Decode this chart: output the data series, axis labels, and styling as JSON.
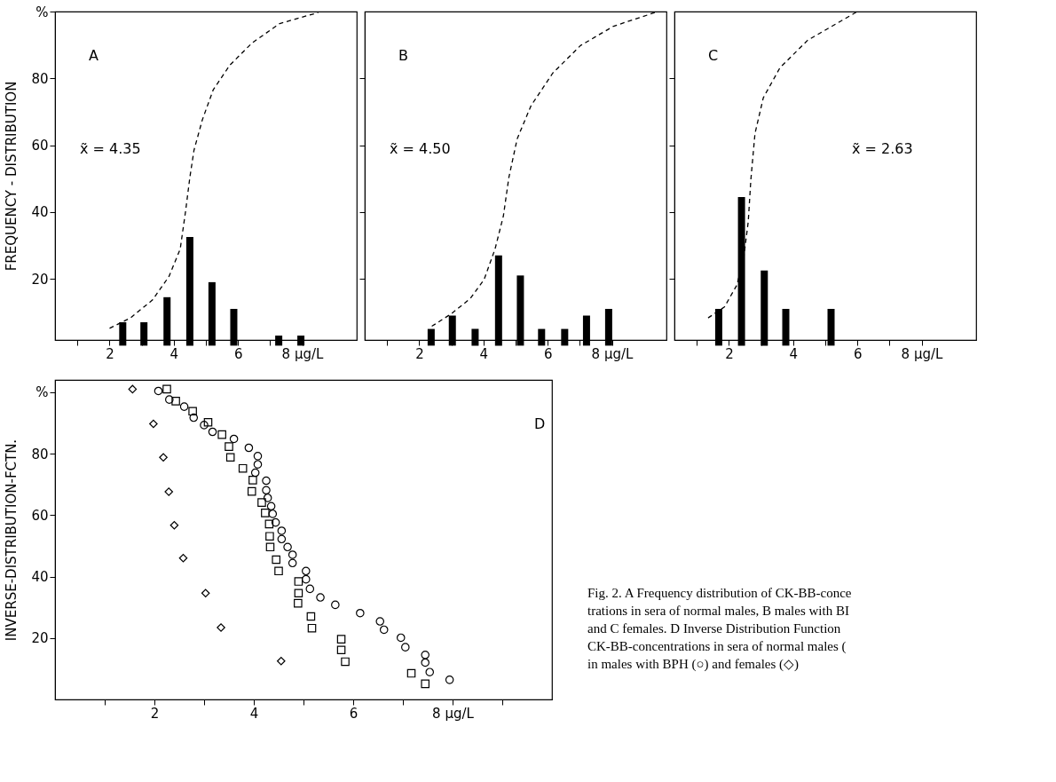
{
  "chart_data": [
    {
      "type": "bar",
      "ylabel": "FREQUENCY - DISTRIBUTION",
      "annotations": [
        "A",
        "x̃ = 4.35"
      ],
      "xlim": [
        0.3,
        9.7
      ],
      "xticks": [
        {
          "value": 1,
          "label": null
        },
        2,
        {
          "value": 3,
          "label": null
        },
        4,
        {
          "value": 5,
          "label": null
        },
        6,
        {
          "value": 7,
          "label": null
        },
        {
          "value": 8,
          "label": "8 µg/L"
        }
      ],
      "ylim": [
        1.7,
        100
      ],
      "yticks": [
        20,
        40,
        60,
        80,
        {
          "value": 100,
          "label": "%"
        }
      ],
      "grid": false,
      "series": [
        {
          "color": "#000000",
          "x": [
            2.41,
            3.07,
            3.79,
            4.5,
            5.19,
            5.87,
            7.27,
            7.96
          ],
          "values": [
            7,
            7,
            14.5,
            32.5,
            19,
            11,
            3,
            3
          ]
        },
        {
          "type": "line",
          "line_style": "dashed",
          "color": "#000000",
          "x": [
            2.0,
            2.65,
            3.34,
            3.85,
            4.2,
            4.37,
            4.5,
            4.63,
            4.89,
            5.23,
            5.75,
            6.44,
            7.3,
            8.5
          ],
          "values": [
            5.2,
            8.3,
            13.7,
            20.7,
            28.9,
            40.4,
            50.3,
            58.5,
            67.6,
            76.6,
            84,
            90.6,
            96.4,
            99.7
          ]
        }
      ]
    },
    {
      "type": "bar",
      "annotations": [
        "B",
        "x̃ = 4.50"
      ],
      "tick_labels": "x",
      "xlim": [
        0.3,
        9.7
      ],
      "xticks": [
        {
          "value": 1,
          "label": null
        },
        2,
        {
          "value": 3,
          "label": null
        },
        4,
        {
          "value": 5,
          "label": null
        },
        6,
        {
          "value": 7,
          "label": null
        },
        {
          "value": 8,
          "label": "8 µg/L"
        }
      ],
      "ylim": [
        1.7,
        100
      ],
      "yticks": [
        20,
        40,
        60,
        80
      ],
      "grid": false,
      "series": [
        {
          "color": "#000000",
          "x": [
            2.37,
            3.03,
            3.74,
            4.47,
            5.15,
            5.81,
            6.53,
            7.21,
            7.9
          ],
          "values": [
            5,
            9,
            5,
            27,
            21,
            5,
            5,
            9,
            11
          ]
        },
        {
          "type": "line",
          "line_style": "dashed",
          "color": "#000000",
          "x": [
            2.39,
            2.99,
            3.59,
            4.02,
            4.36,
            4.62,
            4.79,
            5.05,
            5.48,
            6.16,
            7.02,
            8.05,
            9.34
          ],
          "values": [
            5.8,
            9.5,
            14.1,
            19.8,
            28.9,
            38.8,
            50.3,
            61.9,
            71.8,
            81.6,
            89.8,
            95.6,
            99.7
          ]
        }
      ]
    },
    {
      "type": "bar",
      "annotations": [
        "C",
        "x̃ = 2.63"
      ],
      "tick_labels": "x",
      "xlim": [
        0.3,
        9.7
      ],
      "xticks": [
        {
          "value": 1,
          "label": null
        },
        2,
        {
          "value": 3,
          "label": null
        },
        4,
        {
          "value": 5,
          "label": null
        },
        6,
        {
          "value": 7,
          "label": null
        },
        {
          "value": 8,
          "label": "8 µg/L"
        }
      ],
      "ylim": [
        1.7,
        100
      ],
      "yticks": [
        20,
        40,
        60,
        80
      ],
      "grid": false,
      "series": [
        {
          "color": "#000000",
          "x": [
            1.68,
            2.39,
            3.1,
            3.77,
            5.18
          ],
          "values": [
            11,
            44.5,
            22.5,
            11,
            11
          ]
        },
        {
          "type": "line",
          "line_style": "dashed",
          "color": "#000000",
          "x": [
            1.35,
            1.86,
            2.25,
            2.47,
            2.6,
            2.68,
            2.81,
            3.07,
            3.59,
            4.45,
            6.0
          ],
          "values": [
            8.3,
            11.6,
            18.2,
            27.2,
            37.1,
            49.5,
            63.5,
            74.2,
            83.2,
            91.4,
            100
          ]
        }
      ]
    },
    {
      "type": "scatter",
      "ylabel": "INVERSE-DISTRIBUTION-FCTN.",
      "annotations": [
        "D",
        "Fig. 2. A Frequency distribution of CK-BB-conce",
        "trations in sera of normal males, B males with BI",
        "and C females. D Inverse Distribution Function",
        "CK-BB-concentrations in sera of normal males (",
        "in males with BPH (○) and females (◇)"
      ],
      "xlim": [
        0,
        10
      ],
      "xticks": [
        {
          "value": 1,
          "label": null
        },
        2,
        {
          "value": 3,
          "label": null
        },
        4,
        {
          "value": 5,
          "label": null
        },
        6,
        {
          "value": 7,
          "label": null
        },
        {
          "value": 8,
          "label": "8  µg/L"
        },
        {
          "value": 9,
          "label": null
        }
      ],
      "ylim": [
        0,
        104
      ],
      "yticks": [
        20,
        40,
        60,
        80,
        {
          "value": 100,
          "label": "%"
        }
      ],
      "grid": false,
      "series": [
        {
          "marker": "square",
          "color": "#000000",
          "x": [
            2.25,
            2.43,
            2.77,
            3.08,
            3.36,
            3.5,
            3.53,
            3.78,
            3.98,
            3.96,
            4.16,
            4.23,
            4.31,
            4.32,
            4.33,
            4.45,
            4.5,
            4.9,
            4.9,
            4.89,
            5.15,
            5.17,
            5.76,
            5.76,
            5.84,
            7.17,
            7.45
          ],
          "values": [
            101,
            97.1,
            93.8,
            90.2,
            86.2,
            82.3,
            78.8,
            75.2,
            71.4,
            67.7,
            64.1,
            60.7,
            57.1,
            53.1,
            49.6,
            45.5,
            41.8,
            38.4,
            34.6,
            31.3,
            27,
            23.2,
            19.6,
            16.1,
            12.3,
            8.5,
            5.1
          ]
        },
        {
          "marker": "circle",
          "color": "#000000",
          "x": [
            2.08,
            2.3,
            2.6,
            2.79,
            3.0,
            3.17,
            3.6,
            3.9,
            4.08,
            4.08,
            4.03,
            4.25,
            4.25,
            4.28,
            4.35,
            4.38,
            4.44,
            4.56,
            4.56,
            4.68,
            4.78,
            4.78,
            5.05,
            5.05,
            5.13,
            5.34,
            5.64,
            6.14,
            6.54,
            6.62,
            6.96,
            7.05,
            7.45,
            7.45,
            7.54,
            7.94
          ],
          "values": [
            100.4,
            97.6,
            95.3,
            91.7,
            89.3,
            87.1,
            84.8,
            81.9,
            79.2,
            76.5,
            73.8,
            71.2,
            68.1,
            65.6,
            62.9,
            60.4,
            57.6,
            54.9,
            52.2,
            49.6,
            47.1,
            44.4,
            41.8,
            39.1,
            36,
            33.2,
            30.8,
            28.1,
            25.4,
            22.7,
            20.1,
            17,
            14.5,
            12,
            8.9,
            6.4
          ]
        },
        {
          "marker": "diamond",
          "color": "#000000",
          "x": [
            1.56,
            1.98,
            2.18,
            2.29,
            2.4,
            2.58,
            3.03,
            3.34,
            4.55
          ],
          "values": [
            101,
            89.7,
            78.8,
            67.6,
            56.7,
            46,
            34.6,
            23.4,
            12.5
          ]
        }
      ]
    }
  ]
}
